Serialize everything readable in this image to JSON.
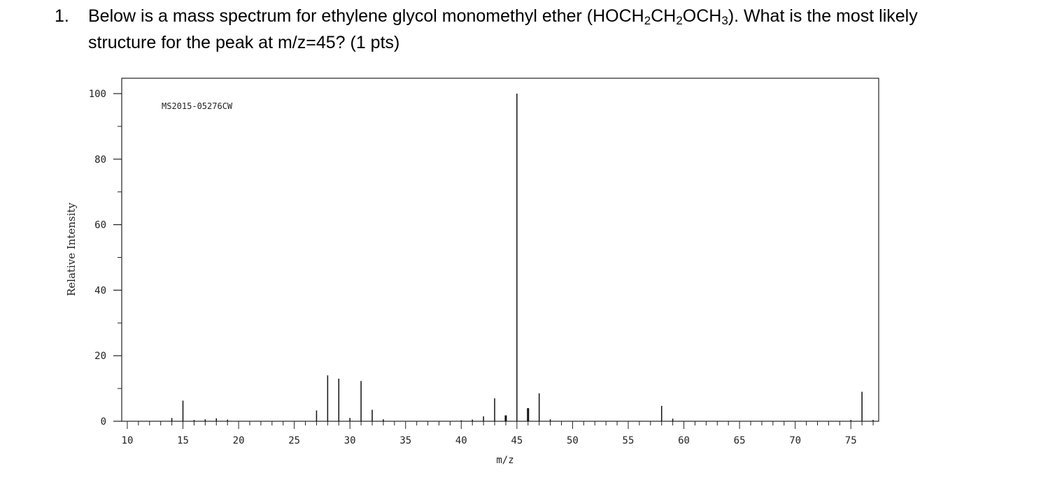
{
  "question": {
    "number": "1.",
    "line1_pre": "Below is a mass spectrum for ethylene glycol monomethyl ether (HOCH",
    "sub1": "2",
    "mid1": "CH",
    "sub2": "2",
    "mid2": "OCH",
    "sub3": "3",
    "line1_post": ").  What is the most likely",
    "line2": "structure for the peak at m/z=45?   (1 pts)"
  },
  "chart_data": {
    "type": "bar",
    "title": "MS2015-05276CW",
    "xlabel": "m/z",
    "ylabel": "Relative Intensity",
    "xlim": [
      9.5,
      77.5
    ],
    "ylim": [
      0,
      100
    ],
    "xticks": [
      10,
      15,
      20,
      25,
      30,
      35,
      40,
      45,
      50,
      55,
      60,
      65,
      70,
      75
    ],
    "yticks": [
      0,
      20,
      40,
      60,
      80,
      100
    ],
    "grid": false,
    "x": [
      14,
      15,
      16,
      17,
      18,
      19,
      27,
      28,
      29,
      30,
      31,
      32,
      33,
      40,
      41,
      42,
      43,
      44,
      45,
      46,
      47,
      48,
      58,
      59,
      75,
      76,
      77
    ],
    "values": [
      1.0,
      6.3,
      0.4,
      0.6,
      0.9,
      0.5,
      3.3,
      14.0,
      13.0,
      1.0,
      12.3,
      3.5,
      0.6,
      0.3,
      0.5,
      1.5,
      7.0,
      1.8,
      100,
      4.0,
      8.5,
      0.6,
      4.7,
      0.8,
      0.4,
      9.0,
      0.4
    ]
  }
}
